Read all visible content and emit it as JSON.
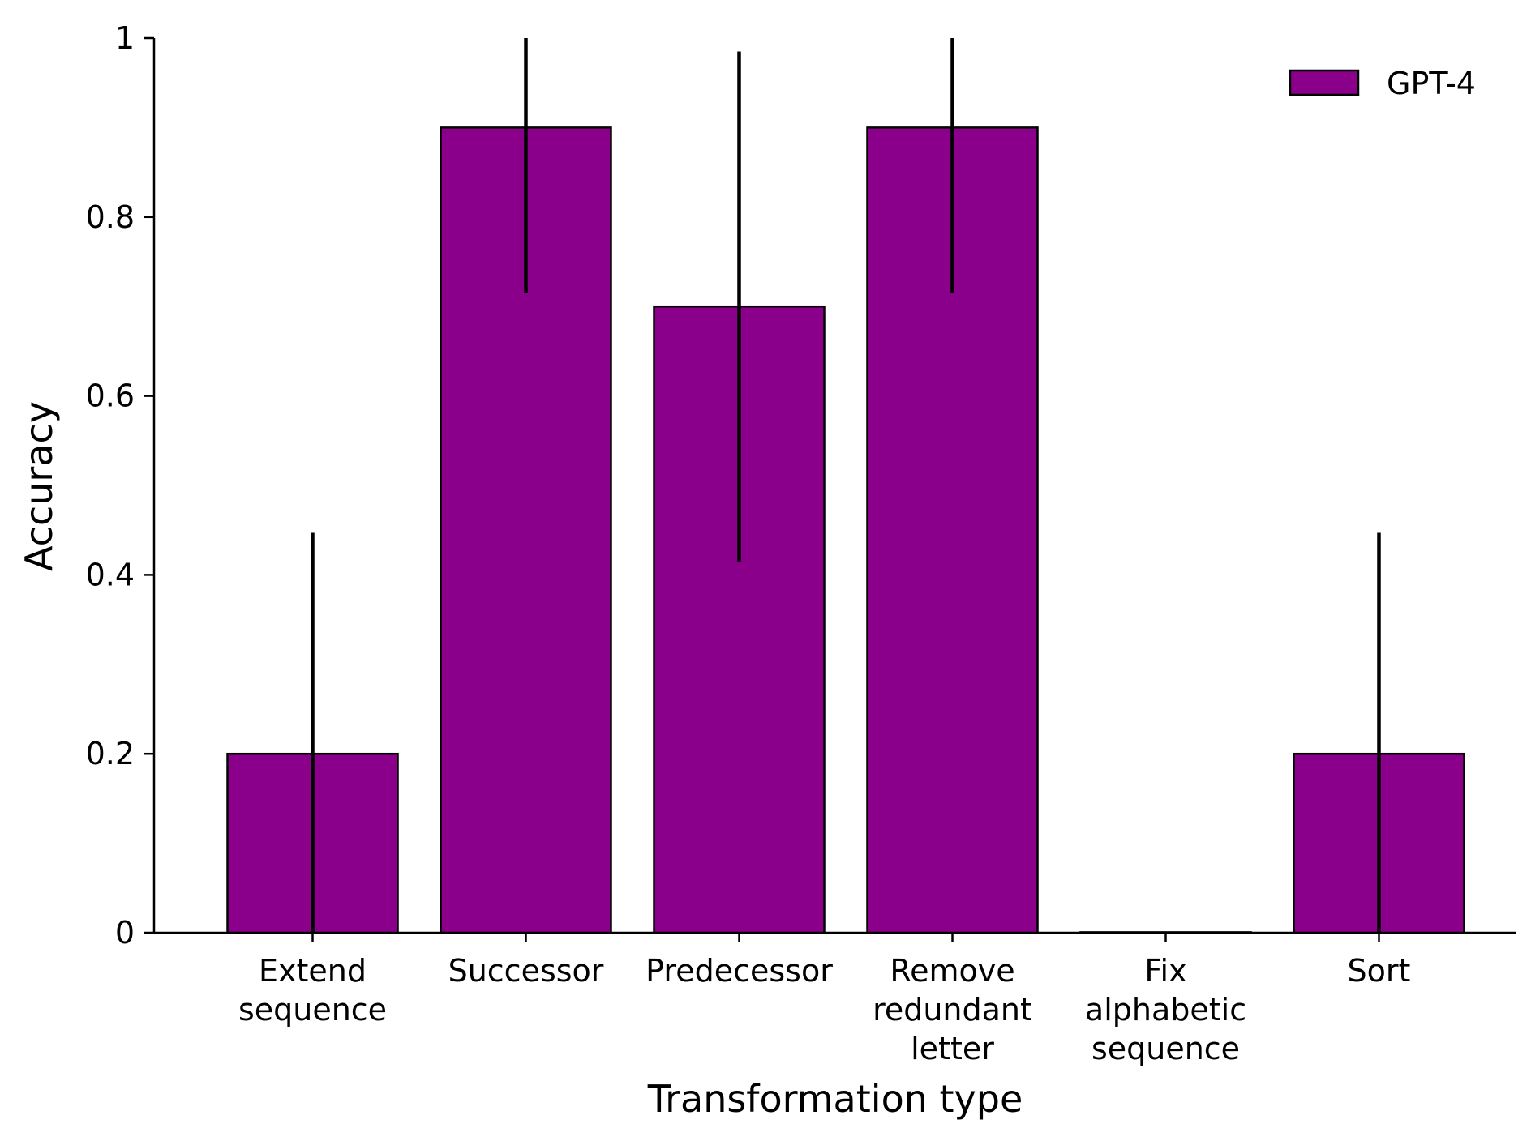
{
  "chart_data": {
    "type": "bar",
    "categories": [
      [
        "Extend",
        "sequence"
      ],
      [
        "Successor"
      ],
      [
        "Predecessor"
      ],
      [
        "Remove",
        "redundant",
        "letter"
      ],
      [
        "Fix",
        "alphabetic",
        "sequence"
      ],
      [
        "Sort"
      ]
    ],
    "series": [
      {
        "name": "GPT-4",
        "values": [
          0.2,
          0.9,
          0.7,
          0.9,
          0.0,
          0.2
        ],
        "error_low": [
          0.0,
          0.715,
          0.415,
          0.715,
          0.0,
          0.0
        ],
        "error_high": [
          0.447,
          1.0,
          0.985,
          1.0,
          0.0,
          0.447
        ]
      }
    ],
    "xlabel": "Transformation type",
    "ylabel": "Accuracy",
    "ylim": [
      0,
      1
    ],
    "yticks": [
      0,
      0.2,
      0.4,
      0.6,
      0.8,
      1
    ],
    "ytick_labels": [
      "0",
      "0.2",
      "0.4",
      "0.6",
      "0.8",
      "1"
    ],
    "grid": false,
    "legend_position": "top-right",
    "colors": {
      "bar": "#8b008b",
      "edge": "#000000",
      "error": "#000000"
    }
  }
}
